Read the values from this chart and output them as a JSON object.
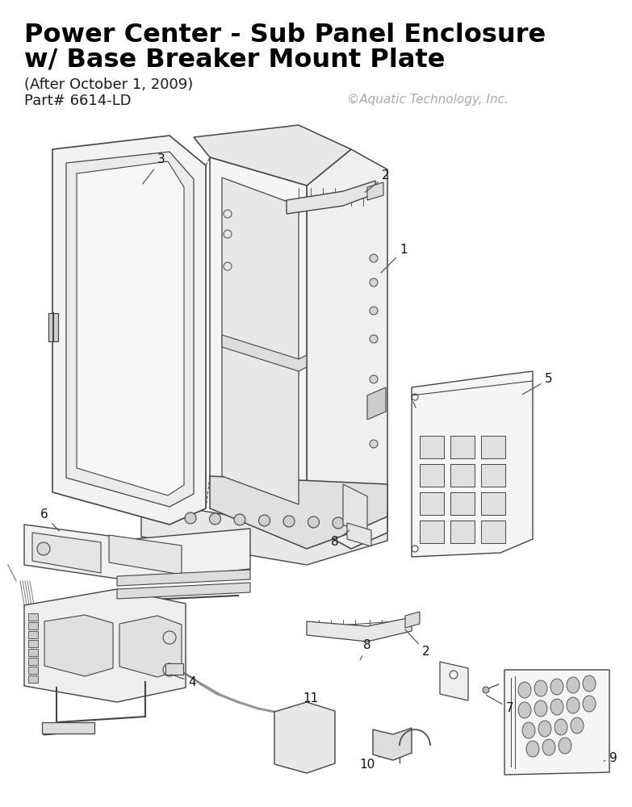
{
  "title_line1": "Power Center - Sub Panel Enclosure",
  "title_line2": "w/ Base Breaker Mount Plate",
  "subtitle_line1": "(After October 1, 2009)",
  "subtitle_line2": "Part# 6614-LD",
  "copyright": "©Aquatic Technology, Inc.",
  "bg_color": "#ffffff",
  "title_color": "#000000",
  "subtitle_color": "#1a1a1a",
  "copyright_color": "#aaaaaa",
  "line_color": "#444444",
  "lw": 1.0
}
